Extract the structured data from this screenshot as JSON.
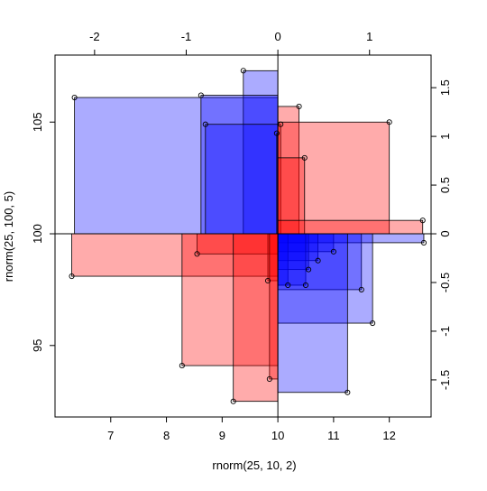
{
  "chart_data": {
    "type": "scatter",
    "title": "",
    "xlabel": "rnorm(25, 10, 2)",
    "ylabel": "rnorm(25, 100, 5)",
    "top_axis": {
      "ticks": [
        -2,
        -1,
        0,
        1
      ],
      "labels": [
        "-2",
        "-1",
        "0",
        "1"
      ]
    },
    "right_axis": {
      "ticks": [
        1.5,
        1,
        0.5,
        0,
        -0.5,
        -1,
        -1.5
      ],
      "labels": [
        "1.5",
        "1",
        "0.5",
        "0",
        "-0.5",
        "-1",
        "-1.5"
      ]
    },
    "bottom_axis": {
      "ticks": [
        7,
        8,
        9,
        10,
        11,
        12
      ],
      "labels": [
        "7",
        "8",
        "9",
        "10",
        "11",
        "12"
      ]
    },
    "left_axis": {
      "ticks": [
        95,
        100,
        105
      ],
      "labels": [
        "95",
        "100",
        "105"
      ]
    },
    "xlim": [
      6.0,
      12.75
    ],
    "ylim": [
      91.8,
      108.0
    ],
    "origin": {
      "x": 10,
      "y": 100
    },
    "colors": {
      "positive": "#0000ff",
      "negative": "#ff0000",
      "outline": "#000000",
      "frame": "#000000"
    },
    "fill_opacity": 0.33,
    "points": [
      {
        "x": 6.35,
        "y": 106.1
      },
      {
        "x": 9.38,
        "y": 107.3
      },
      {
        "x": 8.62,
        "y": 106.2
      },
      {
        "x": 8.7,
        "y": 104.9
      },
      {
        "x": 10.38,
        "y": 105.7
      },
      {
        "x": 9.98,
        "y": 104.5
      },
      {
        "x": 10.05,
        "y": 104.9
      },
      {
        "x": 12.0,
        "y": 105.0
      },
      {
        "x": 10.48,
        "y": 103.4
      },
      {
        "x": 12.6,
        "y": 100.6
      },
      {
        "x": 12.62,
        "y": 99.6
      },
      {
        "x": 6.3,
        "y": 98.1
      },
      {
        "x": 8.55,
        "y": 99.1
      },
      {
        "x": 11.0,
        "y": 99.2
      },
      {
        "x": 10.72,
        "y": 98.8
      },
      {
        "x": 10.55,
        "y": 98.4
      },
      {
        "x": 9.82,
        "y": 97.9
      },
      {
        "x": 10.18,
        "y": 97.7
      },
      {
        "x": 10.5,
        "y": 97.7
      },
      {
        "x": 11.5,
        "y": 97.5
      },
      {
        "x": 11.7,
        "y": 96.0
      },
      {
        "x": 8.28,
        "y": 94.1
      },
      {
        "x": 9.85,
        "y": 93.5
      },
      {
        "x": 11.25,
        "y": 92.9
      },
      {
        "x": 9.2,
        "y": 92.5
      }
    ]
  }
}
